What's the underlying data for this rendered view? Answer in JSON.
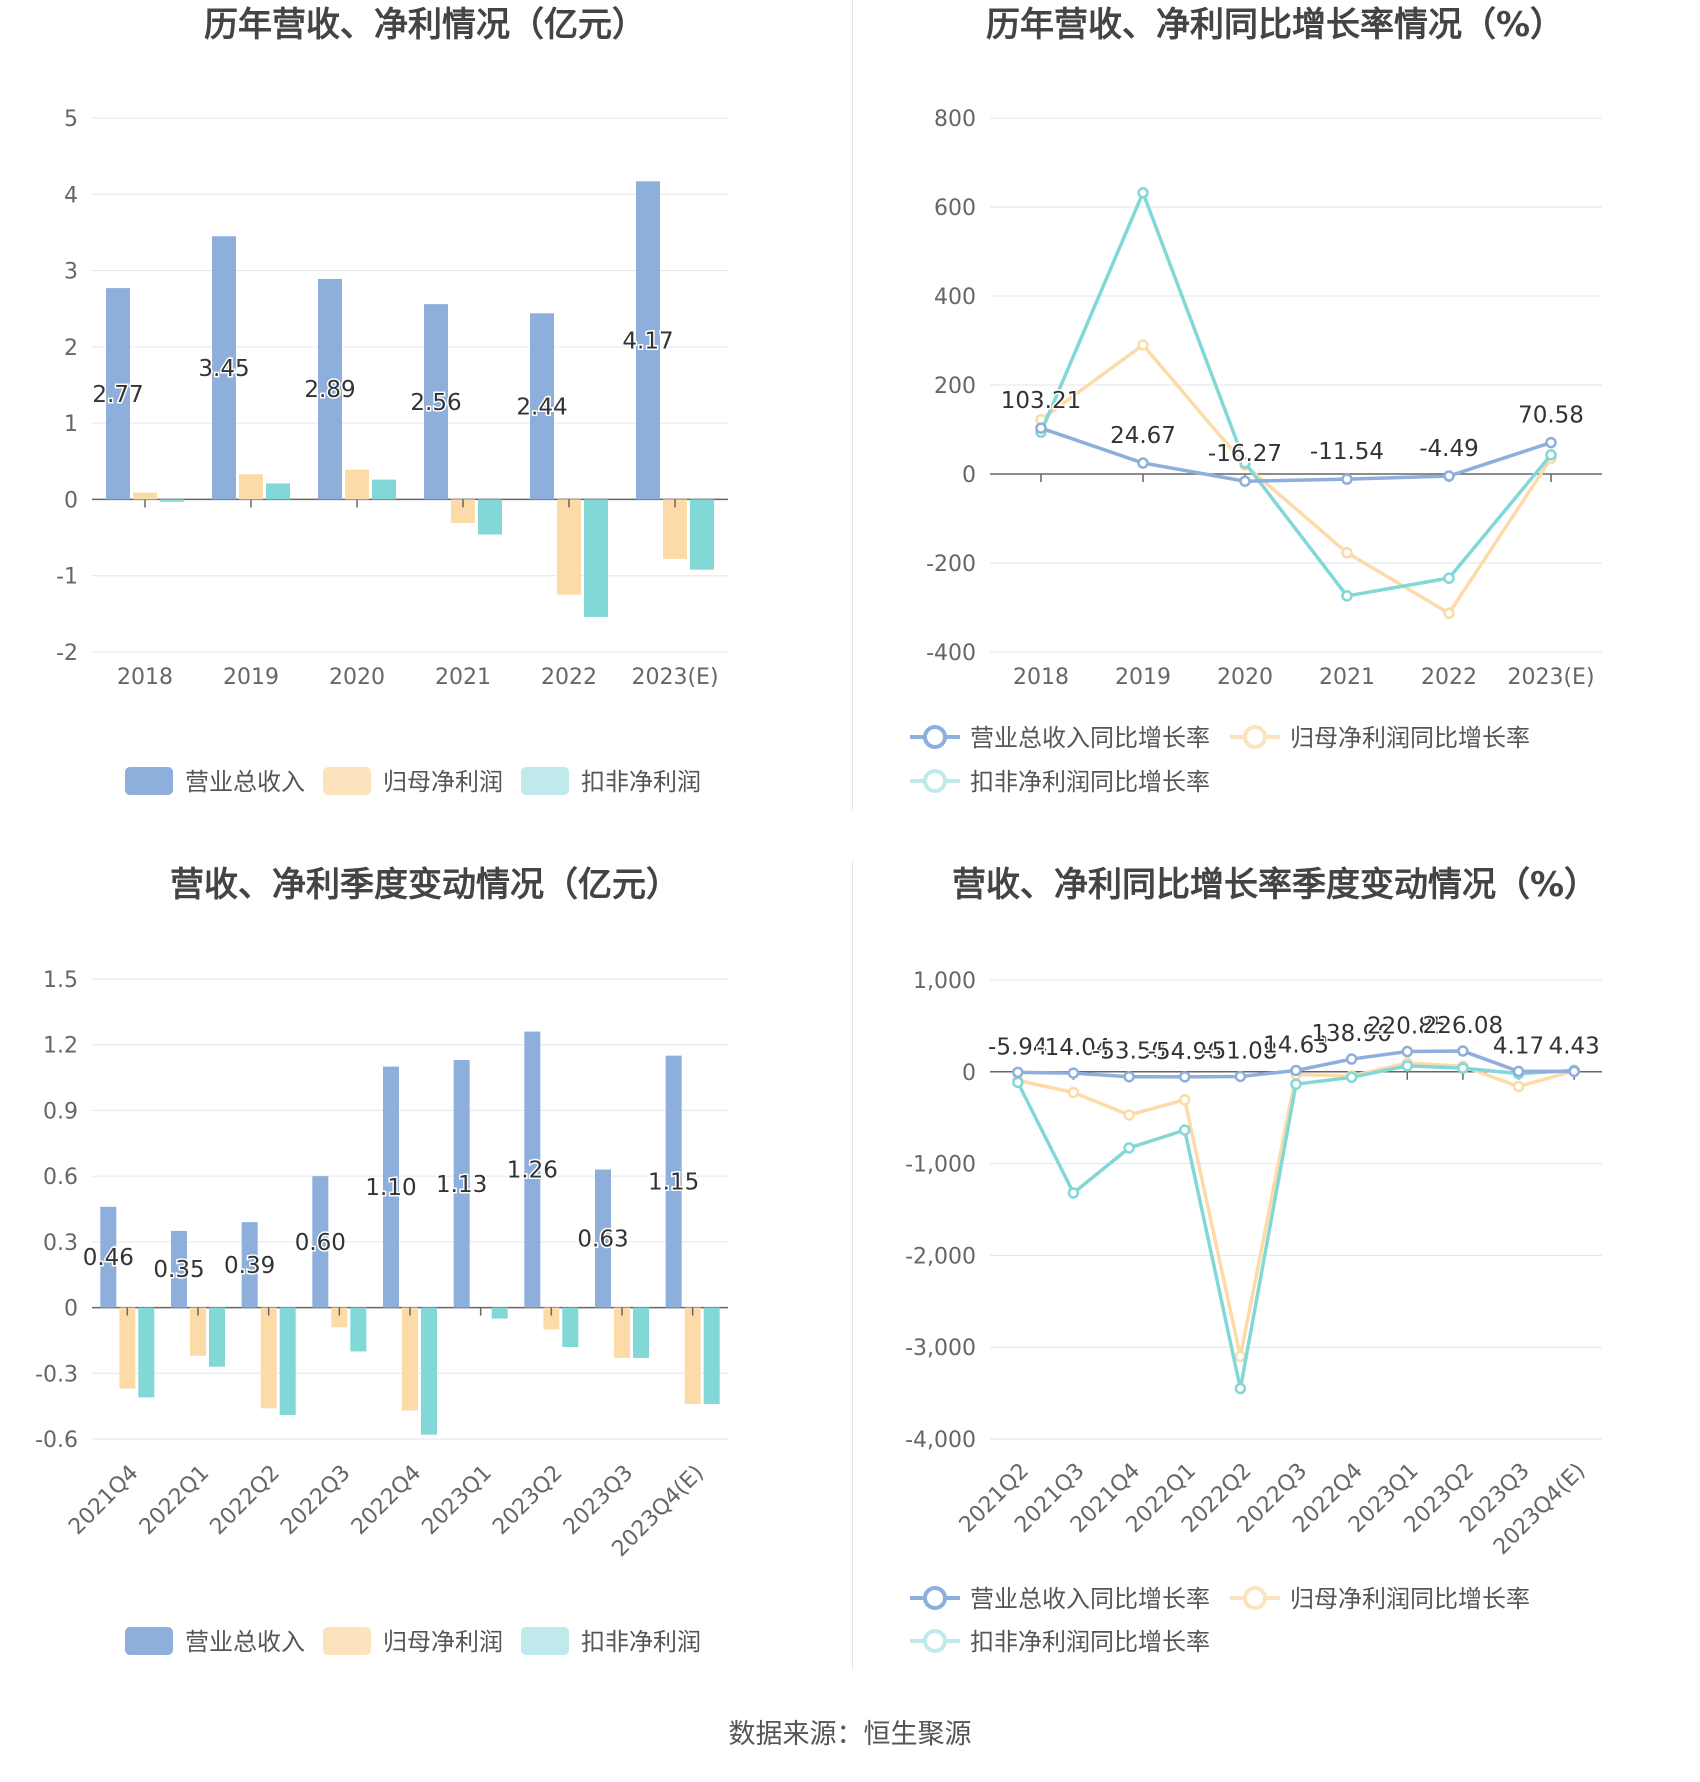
{
  "source": "数据来源：恒生聚源",
  "colors": {
    "revenue": "#8eaedb",
    "net_profit": "#fddba9",
    "deducted_profit": "#82d7d7"
  },
  "chart_data": [
    {
      "type": "bar",
      "title": "历年营收、净利情况（亿元）",
      "categories": [
        "2018",
        "2019",
        "2020",
        "2021",
        "2022",
        "2023(E)"
      ],
      "ylim": [
        -2,
        5
      ],
      "yticks": [
        "5",
        "4",
        "3",
        "2",
        "1",
        "0",
        "-1",
        "-2"
      ],
      "series": [
        {
          "name": "营业总收入",
          "values": [
            2.77,
            3.45,
            2.89,
            2.56,
            2.44,
            4.17
          ],
          "labels": [
            "2.77",
            "3.45",
            "2.89",
            "2.56",
            "2.44",
            "4.17"
          ]
        },
        {
          "name": "归母净利润",
          "values": [
            0.09,
            0.33,
            0.39,
            -0.31,
            -1.25,
            -0.78
          ]
        },
        {
          "name": "扣非净利润",
          "values": [
            -0.03,
            0.21,
            0.26,
            -0.46,
            -1.54,
            -0.92
          ]
        }
      ]
    },
    {
      "type": "line",
      "title": "历年营收、净利同比增长率情况（%）",
      "categories": [
        "2018",
        "2019",
        "2020",
        "2021",
        "2022",
        "2023(E)"
      ],
      "ylim": [
        -400,
        800
      ],
      "yticks": [
        "800",
        "600",
        "400",
        "200",
        "0",
        "-200",
        "-400"
      ],
      "series": [
        {
          "name": "营业总收入同比增长率",
          "values": [
            103.21,
            24.67,
            -16.27,
            -11.54,
            -4.49,
            70.58
          ],
          "labels": [
            "103.21",
            "24.67",
            "-16.27",
            "-11.54",
            "-4.49",
            "70.58"
          ]
        },
        {
          "name": "归母净利润同比增长率",
          "values": [
            122,
            290,
            20,
            -177,
            -313,
            35
          ]
        },
        {
          "name": "扣非净利润同比增长率",
          "values": [
            94,
            632,
            25,
            -274,
            -234,
            43
          ]
        }
      ]
    },
    {
      "type": "bar",
      "title": "营收、净利季度变动情况（亿元）",
      "categories": [
        "2021Q4",
        "2022Q1",
        "2022Q2",
        "2022Q3",
        "2022Q4",
        "2023Q1",
        "2023Q2",
        "2023Q3",
        "2023Q4(E)"
      ],
      "ylim": [
        -0.6,
        1.5
      ],
      "yticks": [
        "1.5",
        "1.2",
        "0.9",
        "0.6",
        "0.3",
        "0",
        "-0.3",
        "-0.6"
      ],
      "series": [
        {
          "name": "营业总收入",
          "values": [
            0.46,
            0.35,
            0.39,
            0.6,
            1.1,
            1.13,
            1.26,
            0.63,
            1.15
          ],
          "labels": [
            "0.46",
            "0.35",
            "0.39",
            "0.60",
            "1.10",
            "1.13",
            "1.26",
            "0.63",
            "1.15"
          ]
        },
        {
          "name": "归母净利润",
          "values": [
            -0.37,
            -0.22,
            -0.46,
            -0.09,
            -0.47,
            0,
            -0.1,
            -0.23,
            -0.44
          ]
        },
        {
          "name": "扣非净利润",
          "values": [
            -0.41,
            -0.27,
            -0.49,
            -0.2,
            -0.58,
            -0.05,
            -0.18,
            -0.23,
            -0.44
          ]
        }
      ]
    },
    {
      "type": "line",
      "title": "营收、净利同比增长率季度变动情况（%）",
      "categories": [
        "2021Q2",
        "2021Q3",
        "2021Q4",
        "2022Q1",
        "2022Q2",
        "2022Q3",
        "2022Q4",
        "2023Q1",
        "2023Q2",
        "2023Q3",
        "2023Q4(E)"
      ],
      "ylim": [
        -4000,
        1000
      ],
      "yticks": [
        "1,000",
        "0",
        "-1,000",
        "-2,000",
        "-3,000",
        "-4,000"
      ],
      "series": [
        {
          "name": "营业总收入同比增长率",
          "values": [
            -5.94,
            -14.04,
            -53.5,
            -54.96,
            -51.08,
            14.63,
            138.9,
            220.85,
            226.08,
            4.17,
            4.43
          ],
          "labels": [
            "-5.94",
            "-14.04",
            "-53.50",
            "-54.96",
            "-51.08",
            "14.63",
            "138.90",
            "220.85",
            "226.08",
            "4.17",
            "4.43"
          ]
        },
        {
          "name": "归母净利润同比增长率",
          "values": [
            -95,
            -225,
            -470,
            -305,
            -3100,
            -30,
            -45,
            95,
            60,
            -160,
            10
          ]
        },
        {
          "name": "扣非净利润同比增长率",
          "values": [
            -115,
            -1320,
            -830,
            -635,
            -3450,
            -135,
            -60,
            65,
            40,
            -20,
            15
          ]
        }
      ]
    }
  ]
}
